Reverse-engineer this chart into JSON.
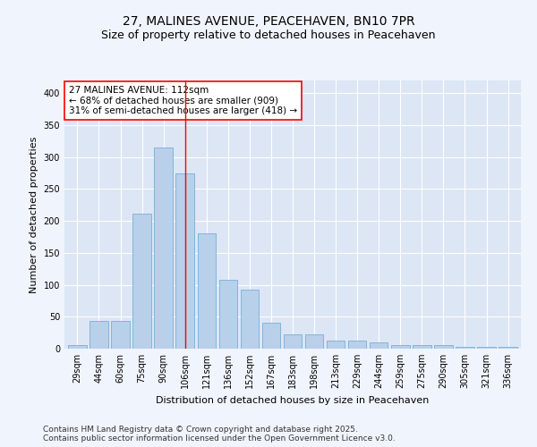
{
  "title_line1": "27, MALINES AVENUE, PEACEHAVEN, BN10 7PR",
  "title_line2": "Size of property relative to detached houses in Peacehaven",
  "xlabel": "Distribution of detached houses by size in Peacehaven",
  "ylabel": "Number of detached properties",
  "categories": [
    "29sqm",
    "44sqm",
    "60sqm",
    "75sqm",
    "90sqm",
    "106sqm",
    "121sqm",
    "136sqm",
    "152sqm",
    "167sqm",
    "183sqm",
    "198sqm",
    "213sqm",
    "229sqm",
    "244sqm",
    "259sqm",
    "275sqm",
    "290sqm",
    "305sqm",
    "321sqm",
    "336sqm"
  ],
  "bar_values": [
    5,
    43,
    43,
    212,
    315,
    275,
    180,
    108,
    93,
    40,
    22,
    22,
    13,
    12,
    10,
    5,
    5,
    5,
    3,
    3,
    3
  ],
  "bar_color": "#b8d0ea",
  "bar_edge_color": "#7aaed6",
  "vline_x": 5.0,
  "vline_color": "red",
  "annotation_text": "27 MALINES AVENUE: 112sqm\n← 68% of detached houses are smaller (909)\n31% of semi-detached houses are larger (418) →",
  "annotation_box_facecolor": "white",
  "annotation_box_edgecolor": "red",
  "ylim": [
    0,
    420
  ],
  "yticks": [
    0,
    50,
    100,
    150,
    200,
    250,
    300,
    350,
    400
  ],
  "plot_bg_color": "#dce6f5",
  "fig_bg_color": "#f0f4fc",
  "footer_text": "Contains HM Land Registry data © Crown copyright and database right 2025.\nContains public sector information licensed under the Open Government Licence v3.0.",
  "title_fontsize": 10,
  "subtitle_fontsize": 9,
  "axis_label_fontsize": 8,
  "tick_fontsize": 7,
  "annotation_fontsize": 7.5,
  "footer_fontsize": 6.5
}
